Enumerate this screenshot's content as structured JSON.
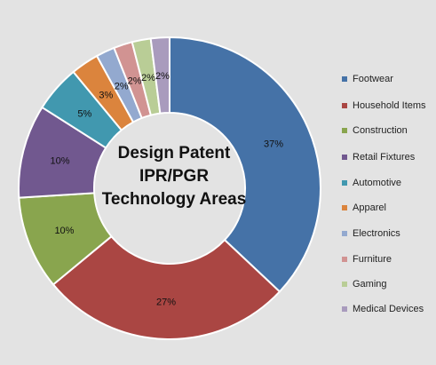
{
  "chart_data": {
    "type": "pie",
    "variant": "donut",
    "title_lines": [
      "Design Patent",
      "IPR/PGR",
      "Technology Areas"
    ],
    "legend_position": "right",
    "slices": [
      {
        "label": "Footwear",
        "value": 37,
        "value_label": "37%",
        "color": "#4572a7"
      },
      {
        "label": "Household Items",
        "value": 27,
        "value_label": "27%",
        "color": "#aa4643"
      },
      {
        "label": "Construction",
        "value": 10,
        "value_label": "10%",
        "color": "#89a54e"
      },
      {
        "label": "Retail Fixtures",
        "value": 10,
        "value_label": "10%",
        "color": "#71588f"
      },
      {
        "label": "Automotive",
        "value": 5,
        "value_label": "5%",
        "color": "#4198af"
      },
      {
        "label": "Apparel",
        "value": 3,
        "value_label": "3%",
        "color": "#db843d"
      },
      {
        "label": "Electronics",
        "value": 2,
        "value_label": "2%",
        "color": "#93a9cf"
      },
      {
        "label": "Furniture",
        "value": 2,
        "value_label": "2%",
        "color": "#d19392"
      },
      {
        "label": "Gaming",
        "value": 2,
        "value_label": "2%",
        "color": "#b9cd96"
      },
      {
        "label": "Medical Devices",
        "value": 2,
        "value_label": "2%",
        "color": "#a99bbd"
      }
    ]
  }
}
